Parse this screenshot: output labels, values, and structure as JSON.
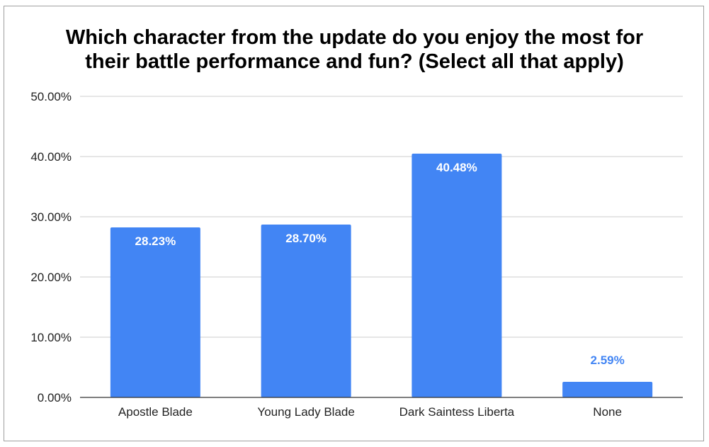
{
  "chart_data": {
    "type": "bar",
    "title": "Which character from the update do you enjoy the most for their battle performance and fun? (Select all that apply)",
    "title_lines": [
      "Which character from the update do you enjoy the most for",
      "their battle performance and fun? (Select all that apply)"
    ],
    "categories": [
      "Apostle Blade",
      "Young Lady Blade",
      "Dark Saintess Liberta",
      "None"
    ],
    "values": [
      28.23,
      28.7,
      40.48,
      2.59
    ],
    "value_labels": [
      "28.23%",
      "28.70%",
      "40.48%",
      "2.59%"
    ],
    "y_ticks": [
      0,
      10,
      20,
      30,
      40,
      50
    ],
    "y_tick_labels": [
      "0.00%",
      "10.00%",
      "20.00%",
      "30.00%",
      "40.00%",
      "50.00%"
    ],
    "ylim": [
      0,
      50
    ],
    "xlabel": "",
    "ylabel": "",
    "grid": true,
    "legend": "none",
    "bar_color": "#4285f4",
    "label_inside_color": "#ffffff",
    "label_outside_color": "#4285f4",
    "gridline_color": "#cccccc",
    "axis_color": "#333333"
  }
}
